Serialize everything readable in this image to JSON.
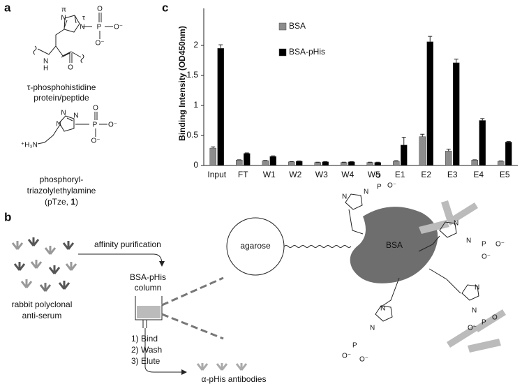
{
  "panel_labels": [
    "a",
    "b",
    "c"
  ],
  "panel_a": {
    "histidine": {
      "atoms": [
        "π",
        "τ",
        "N",
        "N",
        "P",
        "O",
        "O⁻",
        "O⁻",
        "N",
        "H",
        "O"
      ],
      "caption": [
        "τ-phosphohistidine",
        "protein/peptide"
      ]
    },
    "pTze": {
      "atoms": [
        "N",
        "N",
        "N",
        "P",
        "O",
        "O⁻",
        "O⁻",
        "⁺H₃N"
      ],
      "caption": [
        "phosphoryl-",
        "triazolylethylamine"
      ],
      "name_parts": [
        "(pTze, ",
        "1",
        ")"
      ]
    }
  },
  "panel_b": {
    "arrow_label": "affinity purification",
    "source": [
      "rabbit polyclonal",
      "anti-serum"
    ],
    "column": [
      "BSA-pHis",
      "column"
    ],
    "steps": [
      "1) Bind",
      "2) Wash",
      "3) Elute"
    ],
    "product": "α-pHis antibodies",
    "bead": "agarose",
    "carrier": "BSA",
    "atoms": [
      "N",
      "P",
      "O",
      "O⁻"
    ]
  },
  "chart_data": {
    "type": "bar",
    "y_label": "Binding Intensity (OD450nm)",
    "categories": [
      "Input",
      "FT",
      "W1",
      "W2",
      "W3",
      "W4",
      "W5",
      "E1",
      "E2",
      "E3",
      "E4",
      "E5"
    ],
    "series": [
      {
        "name": "BSA",
        "color": "#8c8c8c",
        "values": [
          0.29,
          0.09,
          0.08,
          0.06,
          0.05,
          0.05,
          0.05,
          0.07,
          0.48,
          0.24,
          0.09,
          0.07
        ],
        "errors": [
          0.02,
          0.005,
          0.005,
          0.005,
          0.005,
          0.005,
          0.005,
          0.01,
          0.04,
          0.03,
          0.005,
          0.005
        ]
      },
      {
        "name": "BSA-pHis",
        "color": "#000000",
        "values": [
          1.95,
          0.2,
          0.15,
          0.07,
          0.06,
          0.06,
          0.05,
          0.34,
          2.06,
          1.71,
          0.75,
          0.39
        ],
        "errors": [
          0.06,
          0.01,
          0.01,
          0.005,
          0.005,
          0.005,
          0.005,
          0.13,
          0.09,
          0.06,
          0.03,
          0.01
        ]
      }
    ],
    "ylim": [
      0,
      2.5
    ],
    "yticks": [
      0,
      0.5,
      1,
      1.5,
      2
    ],
    "legend": "upper-left"
  }
}
